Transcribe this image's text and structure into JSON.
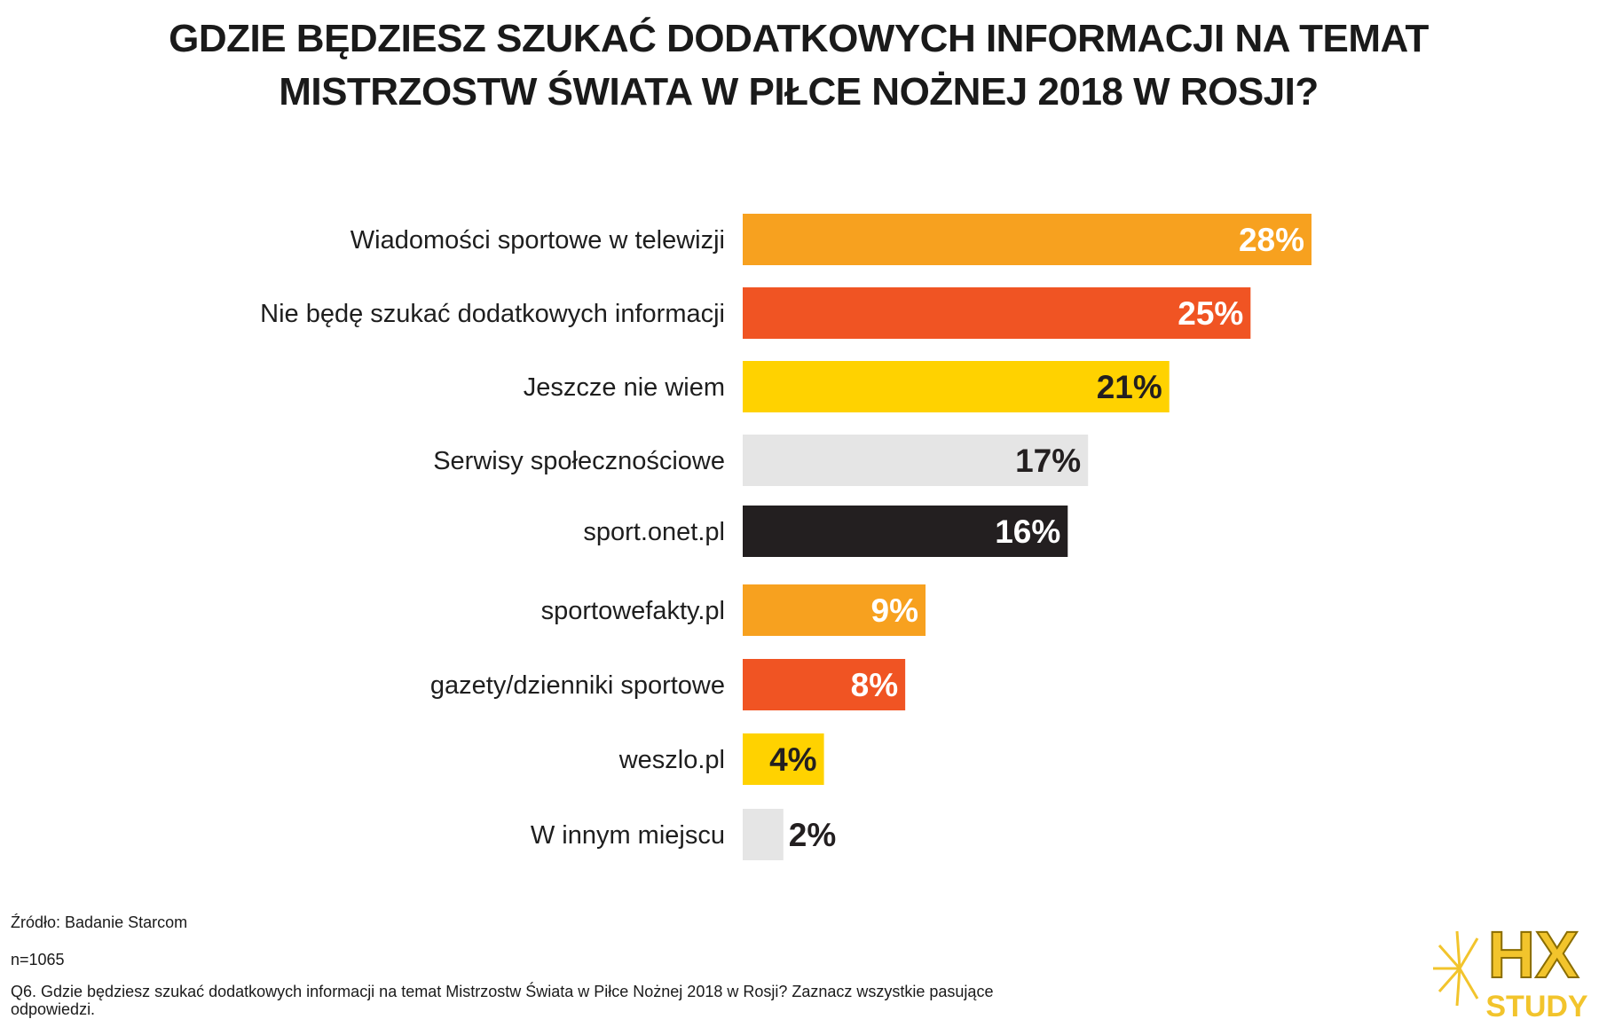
{
  "chart_data": {
    "type": "bar",
    "orientation": "horizontal",
    "title": "GDZIE BĘDZIESZ SZUKAĆ DODATKOWYCH INFORMACJI NA TEMAT MISTRZOSTW ŚWIATA W PIŁCE NOŻNEJ 2018 W ROSJI?",
    "unit": "%",
    "xlim": [
      0,
      28
    ],
    "grid": false,
    "categories": [
      "Wiadomości sportowe w telewizji",
      "Nie będę szukać dodatkowych informacji",
      "Jeszcze nie wiem",
      "Serwisy społecznościowe",
      "sport.onet.pl",
      "sportowefakty.pl",
      "gazety/dzienniki sportowe",
      "weszlo.pl",
      "W innym miejscu"
    ],
    "values": [
      28,
      25,
      21,
      17,
      16,
      9,
      8,
      4,
      2
    ],
    "value_labels": [
      "28%",
      "25%",
      "21%",
      "17%",
      "16%",
      "9%",
      "8%",
      "4%",
      "2%"
    ],
    "bar_colors": [
      "#F7A11F",
      "#F05423",
      "#FFD200",
      "#E5E5E5",
      "#231F20",
      "#F7A11F",
      "#F05423",
      "#FFD200",
      "#E5E5E5"
    ],
    "label_colors": [
      "#FFFFFF",
      "#FFFFFF",
      "#231F20",
      "#231F20",
      "#FFFFFF",
      "#FFFFFF",
      "#FFFFFF",
      "#231F20",
      "#231F20"
    ]
  },
  "footer": {
    "source": "Źródło: Badanie Starcom",
    "sample": "n=1065",
    "question": "Q6. Gdzie będziesz szukać dodatkowych informacji na temat Mistrzostw Świata w Piłce Nożnej 2018 w Rosji? Zaznacz wszystkie pasujące odpowiedzi."
  },
  "logo": {
    "line1": "HX",
    "line2": "STUDY",
    "color": "#F2C42C",
    "icon": "sunburst-icon"
  }
}
